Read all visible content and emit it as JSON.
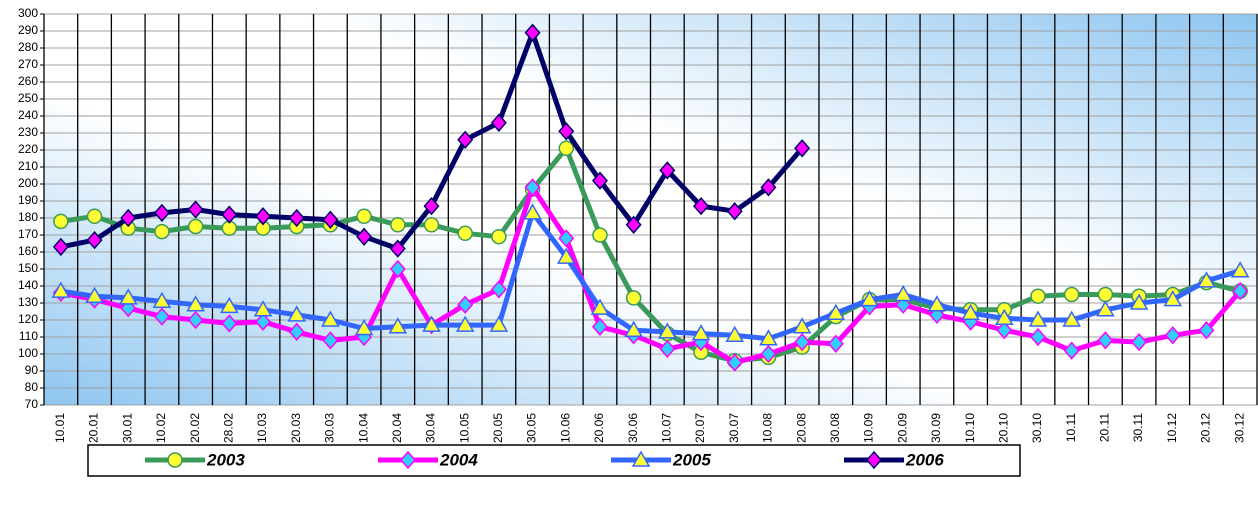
{
  "chart_data": {
    "type": "line",
    "categories": [
      "10.01",
      "20.01",
      "30.01",
      "10.02",
      "20.02",
      "28.02",
      "10.03",
      "20.03",
      "30.03",
      "10.04",
      "20.04",
      "30.04",
      "10.05",
      "20.05",
      "30.05",
      "10.06",
      "20.06",
      "30.06",
      "10.07",
      "20.07",
      "30.07",
      "10.08",
      "20.08",
      "30.08",
      "10.09",
      "20.09",
      "30.09",
      "10.10",
      "20.10",
      "30.10",
      "10.11",
      "20.11",
      "30.11",
      "10.12",
      "20.12",
      "30.12"
    ],
    "series": [
      {
        "name": "2003",
        "color": "#3a9a5a",
        "marker": "circle",
        "marker_color": "#ffff33",
        "values": [
          178,
          181,
          174,
          172,
          175,
          174,
          174,
          175,
          176,
          181,
          176,
          176,
          171,
          169,
          197,
          221,
          170,
          133,
          112,
          101,
          96,
          98,
          104,
          122,
          132,
          132,
          127,
          126,
          126,
          134,
          135,
          135,
          134,
          135,
          142,
          137
        ]
      },
      {
        "name": "2004",
        "color": "#ff00ff",
        "marker": "diamond",
        "marker_color": "#33ccff",
        "values": [
          136,
          132,
          127,
          122,
          120,
          118,
          119,
          113,
          108,
          110,
          150,
          117,
          129,
          138,
          198,
          168,
          116,
          111,
          103,
          107,
          95,
          100,
          107,
          106,
          128,
          129,
          123,
          119,
          114,
          110,
          102,
          108,
          107,
          111,
          114,
          137
        ]
      },
      {
        "name": "2005",
        "color": "#3366ff",
        "marker": "triangle",
        "marker_color": "#ffff33",
        "values": [
          137,
          134,
          133,
          131,
          129,
          128,
          126,
          123,
          120,
          115,
          116,
          117,
          117,
          117,
          183,
          157,
          127,
          114,
          113,
          112,
          111,
          109,
          116,
          124,
          132,
          135,
          129,
          124,
          121,
          120,
          120,
          126,
          130,
          132,
          143,
          149
        ]
      },
      {
        "name": "2006",
        "color": "#000066",
        "marker": "diamond",
        "marker_color": "#ff00ff",
        "values": [
          163,
          167,
          180,
          183,
          185,
          182,
          181,
          180,
          179,
          169,
          162,
          187,
          226,
          236,
          289,
          231,
          202,
          176,
          208,
          187,
          184,
          198,
          221,
          null,
          null,
          null,
          null,
          null,
          null,
          null,
          null,
          null,
          null,
          null,
          null,
          null
        ]
      }
    ],
    "ylim": [
      70,
      300
    ],
    "yticks": [
      70,
      80,
      90,
      100,
      110,
      120,
      130,
      140,
      150,
      160,
      170,
      180,
      190,
      200,
      210,
      220,
      230,
      240,
      250,
      260,
      270,
      280,
      290,
      300
    ],
    "grid": true,
    "legend": "bottom"
  }
}
